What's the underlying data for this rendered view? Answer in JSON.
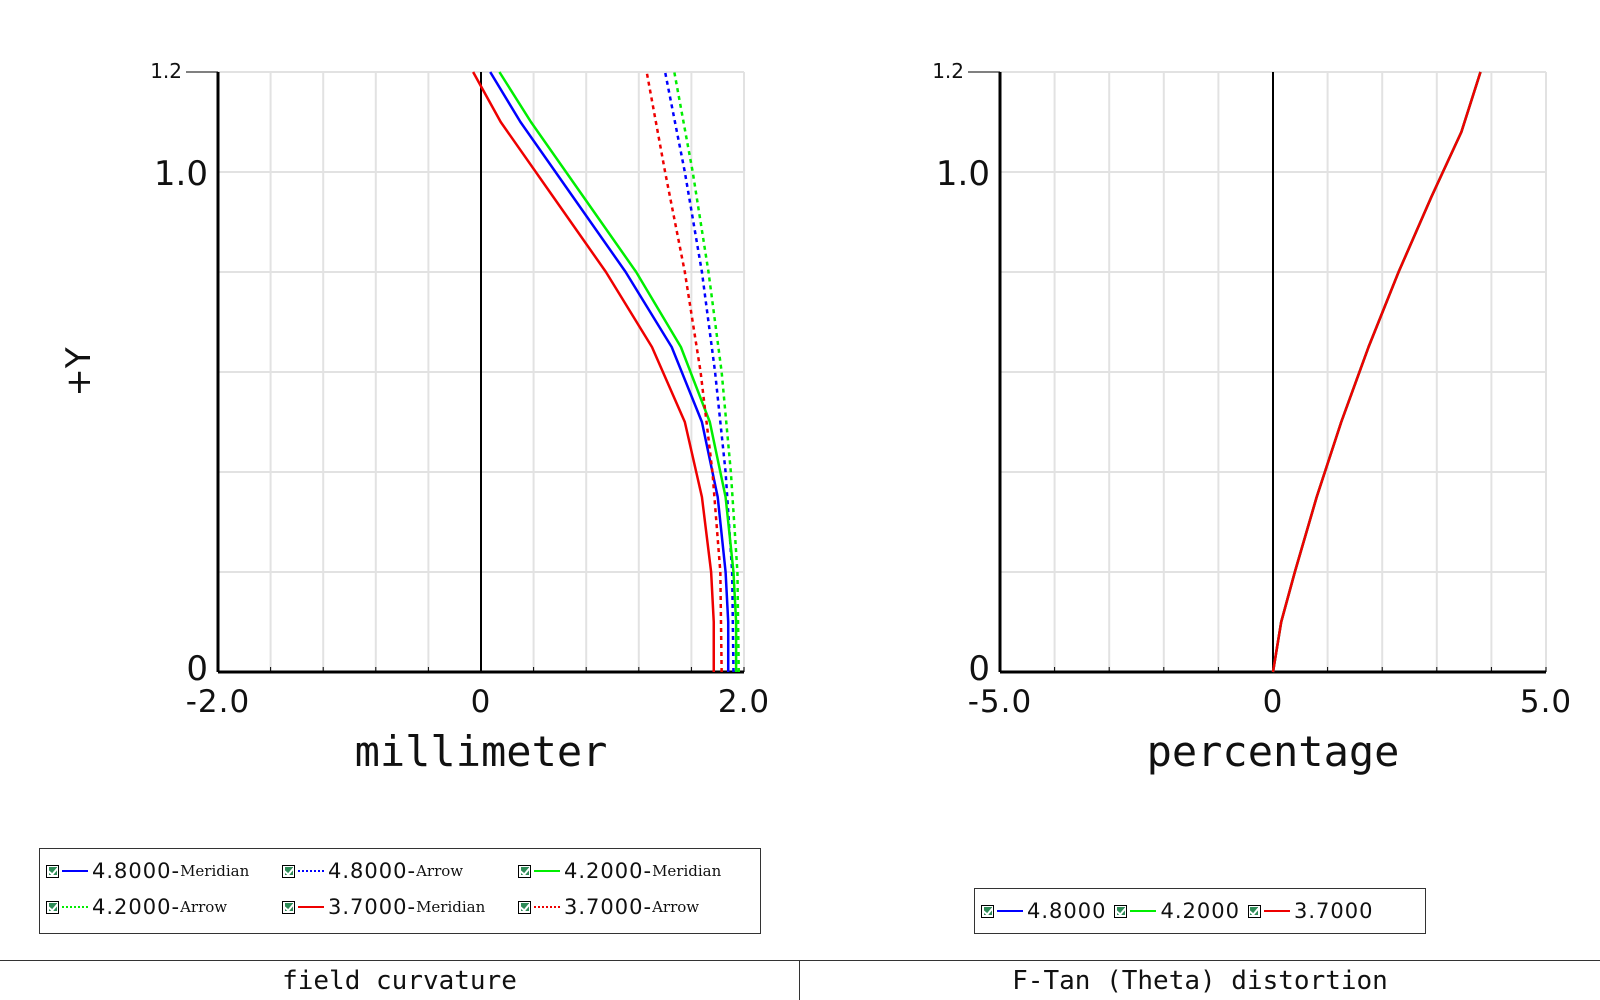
{
  "chart_data": [
    {
      "type": "line",
      "ylabel": "+Y",
      "xlabel": "millimeter",
      "xlim": [
        -2.0,
        2.0
      ],
      "ylim": [
        0,
        1.2
      ],
      "xticks": [
        "-2.0",
        "0",
        "2.0"
      ],
      "yticks": [
        "0",
        "1.0",
        "1.2"
      ],
      "grid": true,
      "legend_placement": "bottom",
      "series": [
        {
          "name": "4.8000-Meridian",
          "color": "#0000ff",
          "style": "solid",
          "points": [
            [
              1.88,
              0
            ],
            [
              1.88,
              0.1
            ],
            [
              1.86,
              0.2
            ],
            [
              1.8,
              0.35
            ],
            [
              1.68,
              0.5
            ],
            [
              1.45,
              0.65
            ],
            [
              1.1,
              0.8
            ],
            [
              0.7,
              0.95
            ],
            [
              0.3,
              1.1
            ],
            [
              0.07,
              1.2
            ]
          ]
        },
        {
          "name": "4.8000-Arrow",
          "color": "#0000ff",
          "style": "dotted",
          "points": [
            [
              1.92,
              0
            ],
            [
              1.91,
              0.2
            ],
            [
              1.86,
              0.4
            ],
            [
              1.78,
              0.6
            ],
            [
              1.68,
              0.8
            ],
            [
              1.55,
              1.0
            ],
            [
              1.4,
              1.2
            ]
          ]
        },
        {
          "name": "4.2000-Meridian",
          "color": "#00ee00",
          "style": "solid",
          "points": [
            [
              1.94,
              0
            ],
            [
              1.94,
              0.1
            ],
            [
              1.92,
              0.2
            ],
            [
              1.86,
              0.35
            ],
            [
              1.74,
              0.5
            ],
            [
              1.52,
              0.65
            ],
            [
              1.18,
              0.8
            ],
            [
              0.78,
              0.95
            ],
            [
              0.38,
              1.1
            ],
            [
              0.14,
              1.2
            ]
          ]
        },
        {
          "name": "4.2000-Arrow",
          "color": "#00ee00",
          "style": "dotted",
          "points": [
            [
              1.96,
              0
            ],
            [
              1.95,
              0.2
            ],
            [
              1.9,
              0.4
            ],
            [
              1.83,
              0.6
            ],
            [
              1.73,
              0.8
            ],
            [
              1.61,
              1.0
            ],
            [
              1.47,
              1.2
            ]
          ]
        },
        {
          "name": "3.7000-Meridian",
          "color": "#ee0000",
          "style": "solid",
          "points": [
            [
              1.77,
              0
            ],
            [
              1.77,
              0.1
            ],
            [
              1.75,
              0.2
            ],
            [
              1.68,
              0.35
            ],
            [
              1.55,
              0.5
            ],
            [
              1.3,
              0.65
            ],
            [
              0.95,
              0.8
            ],
            [
              0.55,
              0.95
            ],
            [
              0.15,
              1.1
            ],
            [
              -0.06,
              1.2
            ]
          ]
        },
        {
          "name": "3.7000-Arrow",
          "color": "#ee0000",
          "style": "dotted",
          "points": [
            [
              1.83,
              0
            ],
            [
              1.82,
              0.2
            ],
            [
              1.76,
              0.4
            ],
            [
              1.67,
              0.6
            ],
            [
              1.55,
              0.8
            ],
            [
              1.4,
              1.0
            ],
            [
              1.26,
              1.2
            ]
          ]
        }
      ]
    },
    {
      "type": "line",
      "xlabel": "percentage",
      "xlim": [
        -5.0,
        5.0
      ],
      "ylim": [
        0,
        1.2
      ],
      "xticks": [
        "-5.0",
        "0",
        "5.0"
      ],
      "yticks": [
        "0",
        "1.0",
        "1.2"
      ],
      "grid": true,
      "legend_placement": "bottom",
      "series": [
        {
          "name": "4.8000",
          "color": "#0000ff",
          "style": "solid",
          "points": [
            [
              0,
              0
            ],
            [
              0.15,
              0.1
            ],
            [
              0.4,
              0.2
            ],
            [
              0.8,
              0.35
            ],
            [
              1.25,
              0.5
            ],
            [
              1.75,
              0.65
            ],
            [
              2.3,
              0.8
            ],
            [
              2.9,
              0.95
            ],
            [
              3.45,
              1.08
            ],
            [
              3.8,
              1.2
            ]
          ]
        },
        {
          "name": "4.2000",
          "color": "#00ee00",
          "style": "solid",
          "points": [
            [
              0,
              0
            ],
            [
              0.15,
              0.1
            ],
            [
              0.4,
              0.2
            ],
            [
              0.8,
              0.35
            ],
            [
              1.25,
              0.5
            ],
            [
              1.75,
              0.65
            ],
            [
              2.3,
              0.8
            ],
            [
              2.9,
              0.95
            ],
            [
              3.45,
              1.08
            ],
            [
              3.8,
              1.2
            ]
          ]
        },
        {
          "name": "3.7000",
          "color": "#ee0000",
          "style": "solid",
          "points": [
            [
              0,
              0
            ],
            [
              0.15,
              0.1
            ],
            [
              0.4,
              0.2
            ],
            [
              0.8,
              0.35
            ],
            [
              1.25,
              0.5
            ],
            [
              1.75,
              0.65
            ],
            [
              2.3,
              0.8
            ],
            [
              2.9,
              0.95
            ],
            [
              3.45,
              1.08
            ],
            [
              3.8,
              1.2
            ]
          ]
        }
      ]
    }
  ],
  "legend_left": {
    "rows": [
      [
        {
          "value": "4.8000-",
          "kind": "Meridian",
          "color": "#0000ff",
          "style": "solid"
        },
        {
          "value": "4.8000-",
          "kind": "Arrow",
          "color": "#0000ff",
          "style": "dotted"
        },
        {
          "value": "4.2000-",
          "kind": "Meridian",
          "color": "#00ee00",
          "style": "solid"
        }
      ],
      [
        {
          "value": "4.2000-",
          "kind": "Arrow",
          "color": "#00ee00",
          "style": "dotted"
        },
        {
          "value": "3.7000-",
          "kind": "Meridian",
          "color": "#ee0000",
          "style": "solid"
        },
        {
          "value": "3.7000-",
          "kind": "Arrow",
          "color": "#ee0000",
          "style": "dotted"
        }
      ]
    ]
  },
  "legend_right": {
    "items": [
      {
        "value": "4.8000",
        "color": "#0000ff"
      },
      {
        "value": "4.2000",
        "color": "#00ee00"
      },
      {
        "value": "3.7000",
        "color": "#ee0000"
      }
    ]
  },
  "captions": {
    "left": "field curvature",
    "right": "F-Tan (Theta) distortion"
  }
}
